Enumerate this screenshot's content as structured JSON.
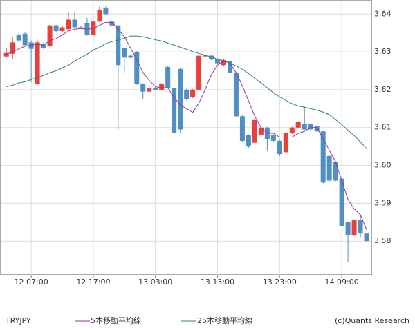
{
  "chart_data": {
    "type": "candlestick",
    "symbol": "TRYJPY",
    "credit": "(c)Quants Research",
    "categories": [
      null,
      null,
      null,
      null,
      "12 07:00",
      null,
      null,
      null,
      null,
      null,
      null,
      null,
      null,
      null,
      "12 17:00",
      null,
      null,
      null,
      null,
      null,
      null,
      null,
      null,
      null,
      "13 03:00",
      null,
      null,
      null,
      null,
      null,
      null,
      null,
      null,
      null,
      "13 13:00",
      null,
      null,
      null,
      null,
      null,
      null,
      null,
      null,
      null,
      "13 23:00",
      null,
      null,
      null,
      null,
      null,
      null,
      null,
      null,
      null,
      "14 09:00",
      null,
      null,
      null,
      null
    ],
    "open": [
      3.6288,
      3.6295,
      3.6345,
      3.6348,
      3.6325,
      3.6215,
      3.632,
      3.6315,
      3.637,
      3.6355,
      3.636,
      3.6385,
      3.6365,
      3.6375,
      3.6345,
      3.638,
      3.6415,
      3.638,
      3.637,
      3.631,
      3.629,
      3.63,
      3.6215,
      3.6195,
      3.6205,
      3.62,
      3.626,
      3.6205,
      3.6255,
      3.62,
      3.618,
      3.62,
      3.6288,
      3.629,
      3.628,
      3.6265,
      3.6275,
      3.6245,
      3.613,
      3.608,
      3.606,
      3.608,
      3.61,
      3.608,
      3.6065,
      3.6035,
      3.6085,
      3.61,
      3.611,
      3.611,
      3.6105,
      3.609,
      3.6025,
      3.601,
      3.5965,
      3.585,
      3.5815,
      3.5855,
      3.582
    ],
    "high": [
      3.631,
      3.634,
      3.635,
      3.6352,
      3.633,
      3.633,
      3.6325,
      3.6372,
      3.6372,
      3.6368,
      3.6405,
      3.6405,
      3.6368,
      3.639,
      3.6382,
      3.642,
      3.642,
      3.6382,
      3.6372,
      3.6312,
      3.6292,
      3.6302,
      3.6217,
      3.6207,
      3.6207,
      3.6217,
      3.6262,
      3.6207,
      3.6257,
      3.6202,
      3.6202,
      3.6292,
      3.6295,
      3.6292,
      3.6282,
      3.628,
      3.6277,
      3.6247,
      3.6132,
      3.6082,
      3.6122,
      3.6102,
      3.6102,
      3.6082,
      3.6067,
      3.6087,
      3.6102,
      3.6117,
      3.6155,
      3.6112,
      3.6107,
      3.6092,
      3.6027,
      3.6012,
      3.5967,
      3.5852,
      3.5857,
      3.587,
      3.5822
    ],
    "low": [
      3.6285,
      3.628,
      3.6328,
      3.6316,
      3.622,
      3.6213,
      3.6305,
      3.6313,
      3.6353,
      3.6353,
      3.6358,
      3.6363,
      3.636,
      3.6343,
      3.6343,
      3.6378,
      3.6398,
      3.6368,
      3.6095,
      3.6245,
      3.6283,
      3.6213,
      3.6175,
      3.6193,
      3.6198,
      3.6198,
      3.6203,
      3.6083,
      3.6085,
      3.6173,
      3.6178,
      3.6198,
      3.6286,
      3.6278,
      3.6268,
      3.6263,
      3.6243,
      3.6128,
      3.6063,
      3.6045,
      3.6058,
      3.6078,
      3.604,
      3.6063,
      3.6025,
      3.6033,
      3.6083,
      3.6098,
      3.6093,
      3.6093,
      3.6088,
      3.5953,
      3.5958,
      3.5958,
      3.5838,
      3.5745,
      3.5813,
      3.581,
      3.5798
    ],
    "close": [
      3.6297,
      3.6325,
      3.633,
      3.6318,
      3.6308,
      3.6325,
      3.631,
      3.637,
      3.6355,
      3.6365,
      3.6385,
      3.6365,
      3.6362,
      3.6345,
      3.638,
      3.641,
      3.64,
      3.637,
      3.6265,
      3.6285,
      3.6285,
      3.6215,
      3.6195,
      3.6205,
      3.62,
      3.6215,
      3.6205,
      3.6085,
      3.6095,
      3.6175,
      3.62,
      3.629,
      3.6292,
      3.628,
      3.627,
      3.6278,
      3.6245,
      3.613,
      3.6065,
      3.605,
      3.612,
      3.61,
      3.607,
      3.6065,
      3.603,
      3.6085,
      3.61,
      3.6115,
      3.6095,
      3.6095,
      3.609,
      3.5955,
      3.596,
      3.596,
      3.584,
      3.5815,
      3.5855,
      3.582,
      3.58
    ],
    "up_color": "#e8403a",
    "down_color": "#4f8fc4",
    "series": [
      {
        "name": "5本移動平均線",
        "color": "#9b2f9b",
        "values": [
          3.6294,
          3.63,
          3.6308,
          3.6315,
          3.6318,
          3.632,
          3.6318,
          3.633,
          3.6335,
          3.6345,
          3.6355,
          3.636,
          3.6362,
          3.636,
          3.6362,
          3.637,
          3.6378,
          3.6378,
          3.636,
          3.634,
          3.631,
          3.628,
          3.6245,
          3.6225,
          3.6208,
          3.6205,
          3.6205,
          3.618,
          3.616,
          3.615,
          3.614,
          3.6165,
          3.62,
          3.624,
          3.6265,
          3.6278,
          3.627,
          3.6245,
          3.621,
          3.617,
          3.613,
          3.61,
          3.6085,
          3.6085,
          3.6075,
          3.6075,
          3.6075,
          3.6085,
          3.609,
          3.61,
          3.61,
          3.607,
          3.604,
          3.601,
          3.596,
          3.591,
          3.5885,
          3.587,
          3.583
        ]
      },
      {
        "name": "25本移動平均線",
        "color": "#2f7f7a",
        "values": [
          3.6208,
          3.6212,
          3.6218,
          3.6221,
          3.6227,
          3.6232,
          3.6238,
          3.6245,
          3.625,
          3.6258,
          3.6265,
          3.6276,
          3.6285,
          3.6294,
          3.6305,
          3.6312,
          3.6322,
          3.6327,
          3.6331,
          3.6336,
          3.6342,
          3.6342,
          3.634,
          3.6336,
          3.6332,
          3.6329,
          3.6323,
          3.6318,
          3.6312,
          3.6307,
          3.6301,
          3.6296,
          3.6291,
          3.6287,
          3.6281,
          3.6276,
          3.627,
          3.6263,
          3.6254,
          3.6243,
          3.623,
          3.6218,
          3.6205,
          3.6192,
          3.6181,
          3.6172,
          3.6163,
          3.6157,
          3.6154,
          3.615,
          3.6146,
          3.6141,
          3.6134,
          3.6121,
          3.6108,
          3.6093,
          3.6079,
          3.6062,
          3.6044
        ]
      }
    ],
    "ylim": [
      3.5711,
      3.6437
    ],
    "yticks": [
      3.58,
      3.59,
      {
        "value": 3.6,
        "label": "3.60"
      },
      3.61,
      3.62,
      3.63,
      3.64
    ],
    "grid": true
  }
}
